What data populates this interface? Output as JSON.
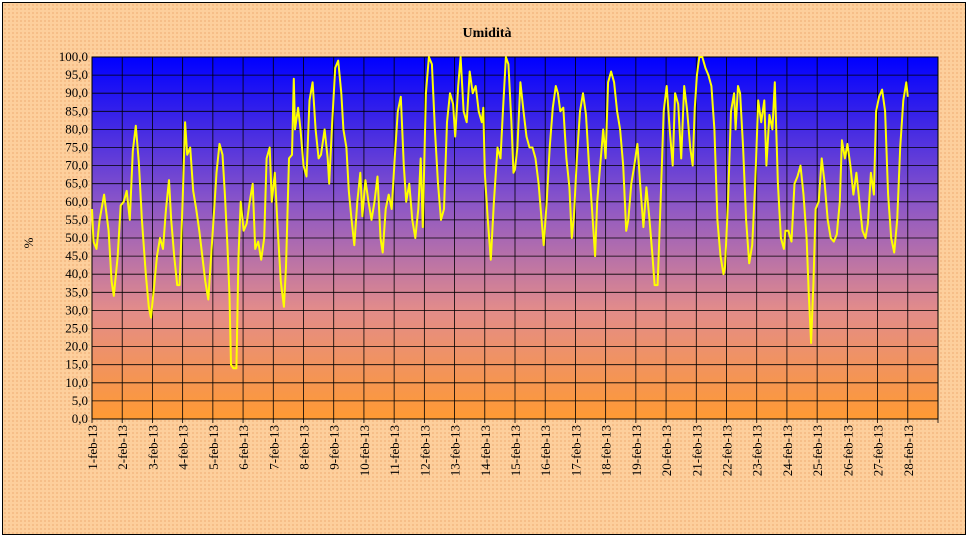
{
  "chart_data": {
    "type": "line",
    "title": "Umidità",
    "xlabel": "",
    "ylabel": "%",
    "ylim": [
      0,
      100
    ],
    "y_tick_step": 5,
    "y_tick_labels": [
      "0,0",
      "5,0",
      "10,0",
      "15,0",
      "20,0",
      "25,0",
      "30,0",
      "35,0",
      "40,0",
      "45,0",
      "50,0",
      "55,0",
      "60,0",
      "65,0",
      "70,0",
      "75,0",
      "80,0",
      "85,0",
      "90,0",
      "95,0",
      "100,0"
    ],
    "categories": [
      "1-feb-13",
      "2-feb-13",
      "3-feb-13",
      "4-feb-13",
      "5-feb-13",
      "6-feb-13",
      "7-feb-13",
      "8-feb-13",
      "9-feb-13",
      "10-feb-13",
      "11-feb-13",
      "12-feb-13",
      "13-feb-13",
      "14-feb-13",
      "15-feb-13",
      "16-feb-13",
      "17-feb-13",
      "18-feb-13",
      "19-feb-13",
      "20-feb-13",
      "21-feb-13",
      "22-feb-13",
      "23-feb-13",
      "24-feb-13",
      "25-feb-13",
      "26-feb-13",
      "27-feb-13",
      "28-feb-13"
    ],
    "grid": true,
    "legend": "none",
    "plot_background": "vertical gradient: blue (top) to orange (bottom)",
    "colors": {
      "line": "#ffff00",
      "plot_top": "#0000ff",
      "plot_bottom": "#ff9a33",
      "frame_background": "#fdcf9c"
    },
    "x_unit": "day (0 = 1-feb-13 00:00)",
    "series": [
      {
        "values_x_y": [
          [
            0.0,
            58
          ],
          [
            0.05,
            49
          ],
          [
            0.15,
            47
          ],
          [
            0.25,
            55
          ],
          [
            0.4,
            62
          ],
          [
            0.55,
            52
          ],
          [
            0.65,
            38
          ],
          [
            0.72,
            34
          ],
          [
            0.85,
            45
          ],
          [
            0.95,
            59
          ],
          [
            1.05,
            60
          ],
          [
            1.15,
            63
          ],
          [
            1.25,
            55
          ],
          [
            1.35,
            74
          ],
          [
            1.45,
            81
          ],
          [
            1.55,
            71
          ],
          [
            1.65,
            55
          ],
          [
            1.78,
            40
          ],
          [
            1.88,
            31
          ],
          [
            1.95,
            28
          ],
          [
            2.05,
            36
          ],
          [
            2.15,
            45
          ],
          [
            2.25,
            50
          ],
          [
            2.35,
            47
          ],
          [
            2.45,
            58
          ],
          [
            2.55,
            66
          ],
          [
            2.62,
            55
          ],
          [
            2.72,
            45
          ],
          [
            2.82,
            37
          ],
          [
            2.9,
            37
          ],
          [
            3.0,
            60
          ],
          [
            3.08,
            82
          ],
          [
            3.15,
            73
          ],
          [
            3.25,
            75
          ],
          [
            3.35,
            63
          ],
          [
            3.45,
            58
          ],
          [
            3.55,
            52
          ],
          [
            3.65,
            45
          ],
          [
            3.75,
            38
          ],
          [
            3.85,
            33
          ],
          [
            3.92,
            42
          ],
          [
            4.02,
            55
          ],
          [
            4.12,
            68
          ],
          [
            4.22,
            76
          ],
          [
            4.32,
            73
          ],
          [
            4.4,
            62
          ],
          [
            4.48,
            48
          ],
          [
            4.55,
            34
          ],
          [
            4.6,
            15
          ],
          [
            4.68,
            14
          ],
          [
            4.78,
            14
          ],
          [
            4.85,
            45
          ],
          [
            4.92,
            60
          ],
          [
            5.02,
            52
          ],
          [
            5.12,
            54
          ],
          [
            5.22,
            60
          ],
          [
            5.32,
            65
          ],
          [
            5.4,
            47
          ],
          [
            5.5,
            49
          ],
          [
            5.6,
            44
          ],
          [
            5.7,
            50
          ],
          [
            5.78,
            72
          ],
          [
            5.88,
            75
          ],
          [
            5.95,
            60
          ],
          [
            6.05,
            68
          ],
          [
            6.15,
            52
          ],
          [
            6.25,
            38
          ],
          [
            6.35,
            31
          ],
          [
            6.42,
            42
          ],
          [
            6.52,
            72
          ],
          [
            6.62,
            73
          ],
          [
            6.68,
            94
          ],
          [
            6.72,
            80
          ],
          [
            6.82,
            86
          ],
          [
            6.9,
            80
          ],
          [
            7.0,
            70
          ],
          [
            7.1,
            67
          ],
          [
            7.2,
            88
          ],
          [
            7.3,
            93
          ],
          [
            7.4,
            80
          ],
          [
            7.5,
            72
          ],
          [
            7.58,
            73
          ],
          [
            7.7,
            80
          ],
          [
            7.8,
            72
          ],
          [
            7.85,
            65
          ],
          [
            7.95,
            82
          ],
          [
            8.05,
            97
          ],
          [
            8.15,
            99
          ],
          [
            8.25,
            90
          ],
          [
            8.32,
            80
          ],
          [
            8.42,
            75
          ],
          [
            8.5,
            63
          ],
          [
            8.58,
            56
          ],
          [
            8.68,
            48
          ],
          [
            8.78,
            60
          ],
          [
            8.88,
            68
          ],
          [
            8.95,
            56
          ],
          [
            9.05,
            66
          ],
          [
            9.15,
            60
          ],
          [
            9.25,
            55
          ],
          [
            9.35,
            60
          ],
          [
            9.45,
            67
          ],
          [
            9.55,
            50
          ],
          [
            9.62,
            46
          ],
          [
            9.72,
            58
          ],
          [
            9.82,
            62
          ],
          [
            9.92,
            58
          ],
          [
            10.02,
            72
          ],
          [
            10.12,
            85
          ],
          [
            10.22,
            89
          ],
          [
            10.32,
            70
          ],
          [
            10.4,
            60
          ],
          [
            10.5,
            65
          ],
          [
            10.6,
            55
          ],
          [
            10.7,
            50
          ],
          [
            10.8,
            58
          ],
          [
            10.88,
            72
          ],
          [
            10.95,
            53
          ],
          [
            11.05,
            90
          ],
          [
            11.15,
            100
          ],
          [
            11.25,
            98
          ],
          [
            11.35,
            80
          ],
          [
            11.45,
            65
          ],
          [
            11.55,
            55
          ],
          [
            11.65,
            58
          ],
          [
            11.75,
            82
          ],
          [
            11.85,
            90
          ],
          [
            11.95,
            87
          ],
          [
            12.02,
            78
          ],
          [
            12.12,
            92
          ],
          [
            12.2,
            100
          ],
          [
            12.3,
            85
          ],
          [
            12.4,
            82
          ],
          [
            12.5,
            96
          ],
          [
            12.6,
            90
          ],
          [
            12.7,
            92
          ],
          [
            12.8,
            85
          ],
          [
            12.9,
            82
          ],
          [
            12.95,
            86
          ],
          [
            13.0,
            68
          ],
          [
            13.1,
            55
          ],
          [
            13.2,
            44
          ],
          [
            13.3,
            60
          ],
          [
            13.42,
            75
          ],
          [
            13.52,
            72
          ],
          [
            13.6,
            85
          ],
          [
            13.7,
            100
          ],
          [
            13.78,
            98
          ],
          [
            13.88,
            82
          ],
          [
            13.95,
            68
          ],
          [
            14.0,
            69
          ],
          [
            14.08,
            75
          ],
          [
            14.18,
            93
          ],
          [
            14.28,
            85
          ],
          [
            14.38,
            78
          ],
          [
            14.48,
            75
          ],
          [
            14.58,
            75
          ],
          [
            14.68,
            72
          ],
          [
            14.78,
            65
          ],
          [
            14.88,
            55
          ],
          [
            14.95,
            48
          ],
          [
            15.05,
            60
          ],
          [
            15.15,
            75
          ],
          [
            15.25,
            86
          ],
          [
            15.35,
            92
          ],
          [
            15.42,
            90
          ],
          [
            15.5,
            85
          ],
          [
            15.6,
            86
          ],
          [
            15.7,
            72
          ],
          [
            15.8,
            64
          ],
          [
            15.88,
            50
          ],
          [
            15.95,
            56
          ],
          [
            16.05,
            72
          ],
          [
            16.15,
            85
          ],
          [
            16.25,
            90
          ],
          [
            16.35,
            84
          ],
          [
            16.45,
            70
          ],
          [
            16.55,
            58
          ],
          [
            16.65,
            45
          ],
          [
            16.72,
            60
          ],
          [
            16.82,
            70
          ],
          [
            16.92,
            80
          ],
          [
            17.0,
            72
          ],
          [
            17.08,
            93
          ],
          [
            17.18,
            96
          ],
          [
            17.28,
            93
          ],
          [
            17.38,
            85
          ],
          [
            17.48,
            80
          ],
          [
            17.58,
            70
          ],
          [
            17.68,
            52
          ],
          [
            17.75,
            55
          ],
          [
            17.85,
            65
          ],
          [
            17.95,
            70
          ],
          [
            18.05,
            76
          ],
          [
            18.15,
            64
          ],
          [
            18.25,
            53
          ],
          [
            18.35,
            64
          ],
          [
            18.45,
            55
          ],
          [
            18.55,
            45
          ],
          [
            18.62,
            37
          ],
          [
            18.72,
            37
          ],
          [
            18.82,
            60
          ],
          [
            18.92,
            85
          ],
          [
            19.02,
            92
          ],
          [
            19.12,
            80
          ],
          [
            19.22,
            70
          ],
          [
            19.3,
            90
          ],
          [
            19.4,
            87
          ],
          [
            19.5,
            72
          ],
          [
            19.6,
            92
          ],
          [
            19.7,
            85
          ],
          [
            19.8,
            75
          ],
          [
            19.88,
            70
          ],
          [
            19.95,
            86
          ],
          [
            20.02,
            95
          ],
          [
            20.1,
            100
          ],
          [
            20.2,
            100
          ],
          [
            20.3,
            97
          ],
          [
            20.4,
            95
          ],
          [
            20.5,
            92
          ],
          [
            20.6,
            80
          ],
          [
            20.7,
            55
          ],
          [
            20.8,
            45
          ],
          [
            20.9,
            40
          ],
          [
            20.95,
            42
          ],
          [
            21.05,
            60
          ],
          [
            21.15,
            85
          ],
          [
            21.25,
            90
          ],
          [
            21.3,
            80
          ],
          [
            21.38,
            92
          ],
          [
            21.45,
            90
          ],
          [
            21.55,
            75
          ],
          [
            21.65,
            55
          ],
          [
            21.75,
            43
          ],
          [
            21.85,
            48
          ],
          [
            21.95,
            65
          ],
          [
            22.05,
            88
          ],
          [
            22.15,
            82
          ],
          [
            22.25,
            88
          ],
          [
            22.32,
            70
          ],
          [
            22.42,
            84
          ],
          [
            22.52,
            80
          ],
          [
            22.6,
            93
          ],
          [
            22.7,
            65
          ],
          [
            22.8,
            50
          ],
          [
            22.9,
            47
          ],
          [
            22.95,
            52
          ],
          [
            23.05,
            52
          ],
          [
            23.15,
            49
          ],
          [
            23.25,
            65
          ],
          [
            23.35,
            67
          ],
          [
            23.45,
            70
          ],
          [
            23.55,
            62
          ],
          [
            23.65,
            50
          ],
          [
            23.72,
            35
          ],
          [
            23.8,
            21
          ],
          [
            23.88,
            38
          ],
          [
            23.95,
            58
          ],
          [
            24.05,
            60
          ],
          [
            24.15,
            72
          ],
          [
            24.25,
            65
          ],
          [
            24.35,
            55
          ],
          [
            24.45,
            50
          ],
          [
            24.55,
            49
          ],
          [
            24.65,
            51
          ],
          [
            24.75,
            60
          ],
          [
            24.82,
            77
          ],
          [
            24.92,
            72
          ],
          [
            25.0,
            76
          ],
          [
            25.1,
            70
          ],
          [
            25.2,
            62
          ],
          [
            25.3,
            68
          ],
          [
            25.4,
            60
          ],
          [
            25.5,
            52
          ],
          [
            25.6,
            50
          ],
          [
            25.68,
            54
          ],
          [
            25.78,
            68
          ],
          [
            25.88,
            62
          ],
          [
            25.95,
            85
          ],
          [
            26.05,
            89
          ],
          [
            26.15,
            91
          ],
          [
            26.25,
            85
          ],
          [
            26.35,
            62
          ],
          [
            26.45,
            50
          ],
          [
            26.55,
            46
          ],
          [
            26.65,
            55
          ],
          [
            26.75,
            75
          ],
          [
            26.85,
            88
          ],
          [
            26.95,
            93
          ],
          [
            27.0,
            89
          ]
        ]
      }
    ]
  }
}
